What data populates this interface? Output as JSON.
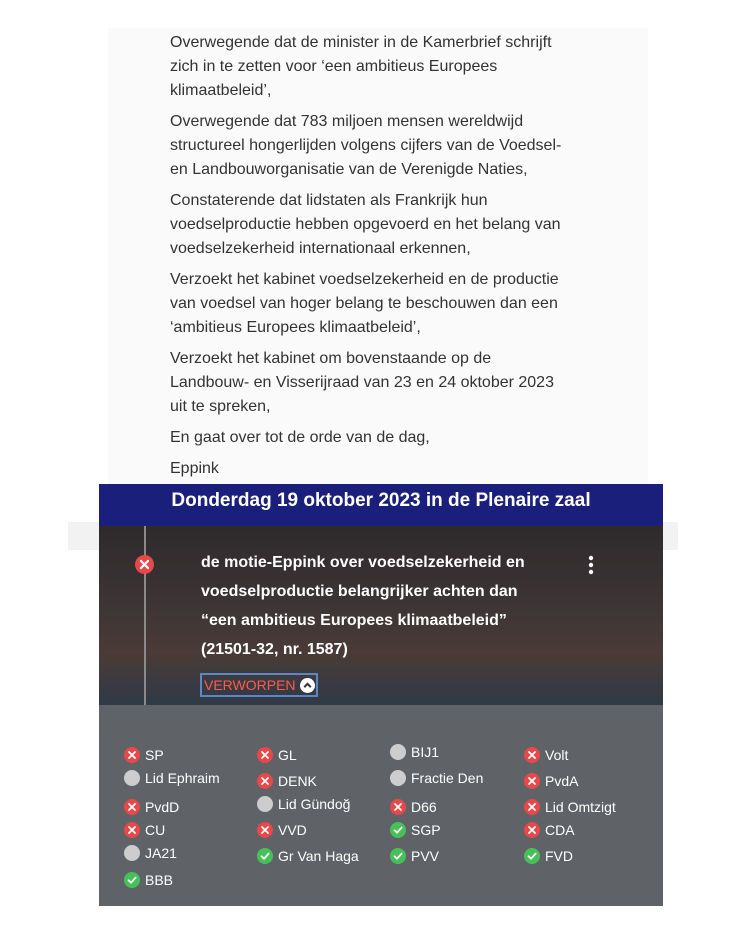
{
  "document": {
    "paragraphs": [
      [
        "Overwegende dat de minister in de Kamerbrief schrijft",
        "zich in te zetten voor ‘een ambitieus Europees",
        "klimaatbeleid’,"
      ],
      [
        "Overwegende dat 783 miljoen mensen wereldwijd",
        "structureel hongerlijden volgens cijfers van de Voedsel-",
        "en Landbouworganisatie van de Verenigde Naties,"
      ],
      [
        "Constaterende dat lidstaten als Frankrijk hun",
        "voedselproductie hebben opgevoerd en het belang van",
        "voedselzekerheid internationaal erkennen,"
      ],
      [
        "Verzoekt het kabinet voedselzekerheid en de productie",
        "van voedsel van hoger belang te beschouwen dan een",
        "‘ambitieus Europees klimaatbeleid’,"
      ],
      [
        "Verzoekt het kabinet om bovenstaande op de",
        "Landbouw- en Visserijraad van 23 en 24 oktober 2023",
        "uit te spreken,"
      ],
      [
        "En gaat over tot de orde van de dag,"
      ],
      [
        "Eppink"
      ]
    ]
  },
  "banner": {
    "title": "Donderdag 19 oktober 2023 in de Plenaire zaal"
  },
  "motion": {
    "lines": [
      "de motie-Eppink over voedselzekerheid en",
      "voedselproductie belangrijker achten dan",
      "“een ambitieus Europees klimaatbeleid”",
      "(21501-32, nr. 1587)"
    ],
    "result": "VERWORPEN"
  },
  "votes": {
    "columns": [
      [
        "SP",
        "Lid Ephraim",
        "PvdD",
        "CU",
        "JA21",
        "BBB"
      ],
      [
        "GL",
        "DENK",
        "Lid Gündoğ",
        "VVD",
        "Gr Van Haga"
      ],
      [
        "BIJ1",
        "Fractie Den",
        "D66",
        "SGP",
        "PVV"
      ],
      [
        "Volt",
        "PvdA",
        "Lid Omtzigt",
        "CDA",
        "FVD"
      ]
    ]
  }
}
